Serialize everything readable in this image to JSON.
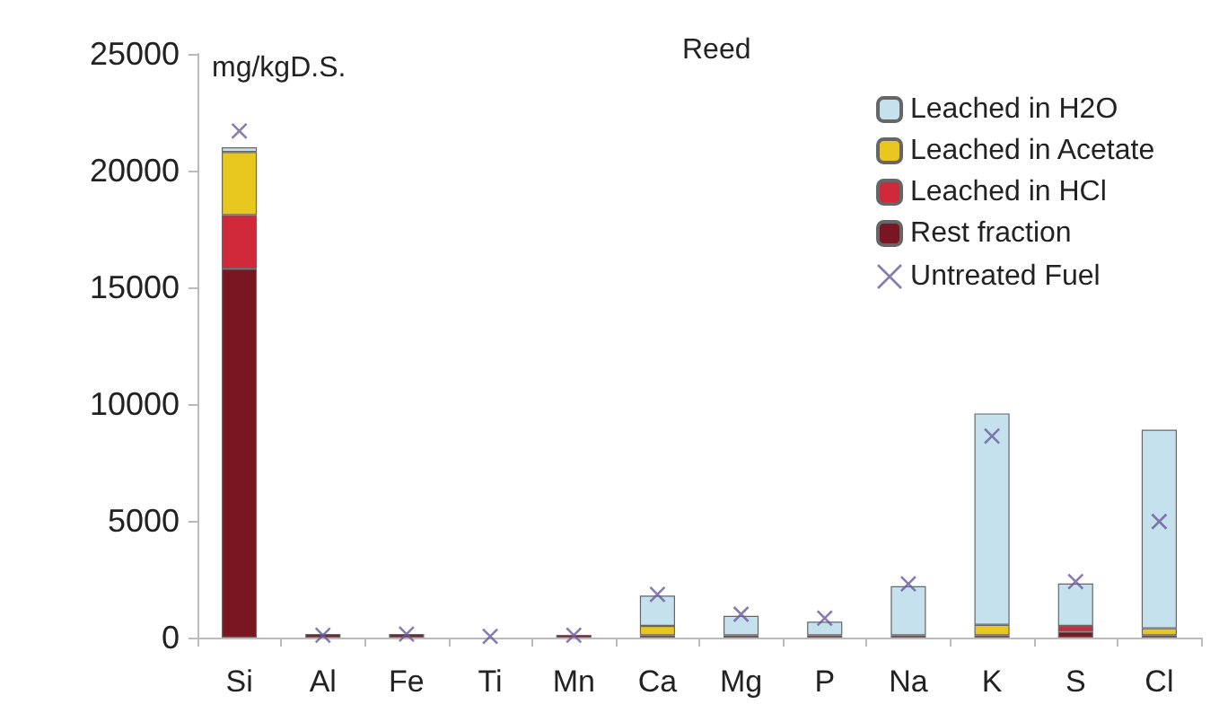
{
  "chart_data": {
    "type": "bar",
    "title": "Reed",
    "ylabel": "mg/kgD.S.",
    "categories": [
      "Si",
      "Al",
      "Fe",
      "Ti",
      "Mn",
      "Ca",
      "Mg",
      "P",
      "Na",
      "K",
      "S",
      "Cl"
    ],
    "stacked": true,
    "series": [
      {
        "name": "Rest fraction",
        "color": "#7a1522",
        "values": [
          15800,
          150,
          150,
          null,
          120,
          100,
          100,
          100,
          100,
          100,
          250,
          100
        ]
      },
      {
        "name": "Leached in HCl",
        "color": "#d02a3a",
        "values": [
          2300,
          null,
          null,
          null,
          null,
          null,
          null,
          null,
          null,
          null,
          250,
          null
        ]
      },
      {
        "name": "Leached in Acetate",
        "color": "#e8c81e",
        "values": [
          2700,
          null,
          null,
          null,
          null,
          400,
          null,
          null,
          null,
          450,
          null,
          300
        ]
      },
      {
        "name": "Leached in H2O",
        "color": "#c5e1ee",
        "values": [
          200,
          null,
          null,
          null,
          null,
          1300,
          830,
          580,
          2100,
          9050,
          1820,
          8500
        ]
      },
      {
        "name": "Untreated Fuel",
        "type": "scatter",
        "color": "#6a5a9e",
        "marker": "cross",
        "x": [
          "Si",
          "Al",
          "Fe",
          "Ti",
          "Mn",
          "Ca",
          "Mg",
          "P",
          "Na",
          "K",
          "S",
          "Cl"
        ],
        "values": [
          21700,
          100,
          150,
          50,
          100,
          1850,
          1000,
          830,
          2300,
          8630,
          2400,
          4970
        ]
      }
    ],
    "ylim": [
      0,
      25000
    ],
    "yticks": [
      0,
      5000,
      10000,
      15000,
      20000,
      25000
    ],
    "grid": false,
    "legend": "top right"
  }
}
